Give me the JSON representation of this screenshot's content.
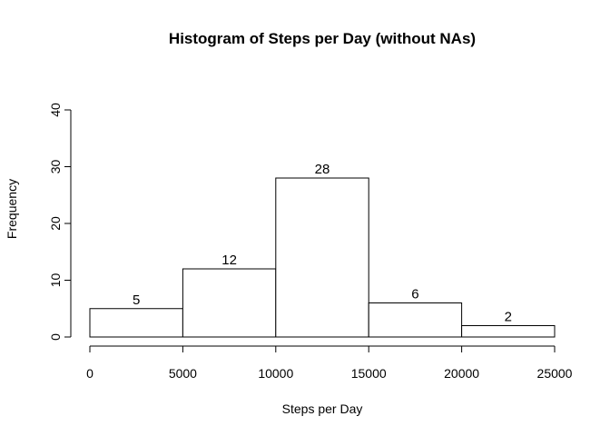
{
  "chart_data": {
    "type": "bar",
    "title": "Histogram of Steps per Day (without NAs)",
    "xlabel": "Steps per Day",
    "ylabel": "Frequency",
    "bins": [
      {
        "from": 0,
        "to": 5000,
        "value": 5
      },
      {
        "from": 5000,
        "to": 10000,
        "value": 12
      },
      {
        "from": 10000,
        "to": 15000,
        "value": 28
      },
      {
        "from": 15000,
        "to": 20000,
        "value": 6
      },
      {
        "from": 20000,
        "to": 25000,
        "value": 2
      }
    ],
    "data_labels": [
      "5",
      "12",
      "28",
      "6",
      "2"
    ],
    "xlim": [
      0,
      25000
    ],
    "ylim": [
      0,
      40
    ],
    "x_ticks": [
      0,
      5000,
      10000,
      15000,
      20000,
      25000
    ],
    "x_tick_labels": [
      "0",
      "5000",
      "10000",
      "15000",
      "20000",
      "25000"
    ],
    "y_ticks": [
      0,
      10,
      20,
      30,
      40
    ],
    "y_tick_labels": [
      "0",
      "10",
      "20",
      "30",
      "40"
    ],
    "grid": false,
    "bar_fill": "#ffffff",
    "bar_stroke": "#000000"
  }
}
